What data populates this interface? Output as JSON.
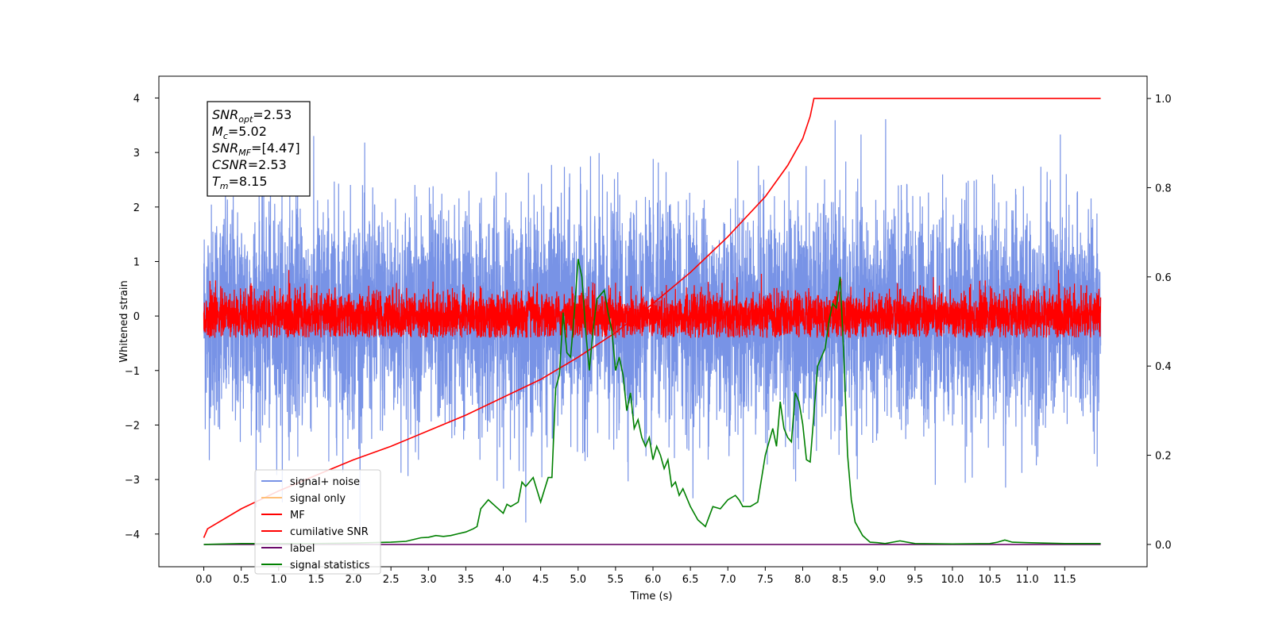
{
  "chart_data": {
    "type": "line",
    "xlabel": "Time (s)",
    "ylabel": "Whitened strain",
    "xlim": [
      -0.6,
      12.6
    ],
    "ylim": [
      -4.6,
      4.4
    ],
    "y2lim": [
      -0.05,
      1.05
    ],
    "x_ticks": [
      0.0,
      0.5,
      1.0,
      1.5,
      2.0,
      2.5,
      3.0,
      3.5,
      4.0,
      4.5,
      5.0,
      5.5,
      6.0,
      6.5,
      7.0,
      7.5,
      8.0,
      8.5,
      9.0,
      9.5,
      10.0,
      10.5,
      11.0,
      11.5
    ],
    "x_tick_labels": [
      "0.0",
      "0.5",
      "1.0",
      "1.5",
      "2.0",
      "2.5",
      "3.0",
      "3.5",
      "4.0",
      "4.5",
      "5.0",
      "5.5",
      "6.0",
      "6.5",
      "7.0",
      "7.5",
      "8.0",
      "8.5",
      "9.0",
      "9.5",
      "10.0",
      "10.5",
      "11.0",
      "11.5"
    ],
    "y_ticks": [
      -4,
      -3,
      -2,
      -1,
      0,
      1,
      2,
      3,
      4
    ],
    "y_tick_labels": [
      "−4",
      "−3",
      "−2",
      "−1",
      "0",
      "1",
      "2",
      "3",
      "4"
    ],
    "y2_ticks": [
      0.0,
      0.2,
      0.4,
      0.6,
      0.8,
      1.0
    ],
    "y2_tick_labels": [
      "0.0",
      "0.2",
      "0.4",
      "0.6",
      "0.8",
      "1.0"
    ],
    "grid": false,
    "legend_position": "lower-left",
    "annotation": {
      "lines": [
        {
          "sym": "SNR",
          "sub": "opt",
          "val": "=2.53"
        },
        {
          "sym": "M",
          "sub": "c",
          "val": "=5.02"
        },
        {
          "sym": "SNR",
          "sub": "MF",
          "val": "=[4.47]"
        },
        {
          "sym": "CSNR",
          "sub": "",
          "val": "=2.53"
        },
        {
          "sym": "T",
          "sub": "m",
          "val": "=8.15"
        }
      ]
    },
    "series": [
      {
        "name": "signal+ noise",
        "color": "#7893e6",
        "axis": "left",
        "kind": "noise",
        "x_range": [
          0,
          11.98
        ],
        "typical_amplitude": 1.4,
        "peak_max": 4.0,
        "peak_min": -4.15
      },
      {
        "name": "signal only",
        "color": "#ffc07a",
        "axis": "left",
        "kind": "hidden"
      },
      {
        "name": "MF",
        "color": "#ff0000",
        "axis": "left",
        "kind": "noise",
        "x_range": [
          0,
          11.98
        ],
        "typical_amplitude": 0.3,
        "peak_max": 0.9,
        "peak_min": -0.4
      },
      {
        "name": "cumilative SNR",
        "color": "#ff0000",
        "axis": "right",
        "kind": "line",
        "x": [
          0,
          0.05,
          0.5,
          1.0,
          1.5,
          2.0,
          2.5,
          3.0,
          3.5,
          4.0,
          4.5,
          5.0,
          5.5,
          6.0,
          6.5,
          7.0,
          7.5,
          7.8,
          8.0,
          8.1,
          8.15,
          8.2,
          9.0,
          10.0,
          11.0,
          11.98
        ],
        "y": [
          0.015,
          0.035,
          0.08,
          0.12,
          0.155,
          0.19,
          0.22,
          0.255,
          0.29,
          0.33,
          0.37,
          0.42,
          0.475,
          0.54,
          0.61,
          0.69,
          0.78,
          0.85,
          0.91,
          0.96,
          1.0,
          1.0,
          1.0,
          1.0,
          1.0,
          1.0
        ]
      },
      {
        "name": "label",
        "color": "#6a0a6a",
        "axis": "right",
        "kind": "line",
        "x": [
          0,
          11.98
        ],
        "y": [
          0.0,
          0.0
        ]
      },
      {
        "name": "signal statistics",
        "color": "#008000",
        "axis": "right",
        "kind": "line",
        "x": [
          0,
          0.5,
          1.0,
          1.5,
          2.0,
          2.5,
          2.7,
          2.9,
          3.0,
          3.1,
          3.2,
          3.3,
          3.4,
          3.5,
          3.6,
          3.65,
          3.7,
          3.8,
          3.9,
          4.0,
          4.05,
          4.1,
          4.2,
          4.25,
          4.3,
          4.4,
          4.5,
          4.6,
          4.65,
          4.7,
          4.75,
          4.8,
          4.85,
          4.9,
          4.95,
          5.0,
          5.05,
          5.1,
          5.15,
          5.2,
          5.25,
          5.3,
          5.35,
          5.4,
          5.45,
          5.5,
          5.55,
          5.6,
          5.65,
          5.7,
          5.75,
          5.8,
          5.85,
          5.9,
          5.95,
          6.0,
          6.05,
          6.1,
          6.15,
          6.2,
          6.25,
          6.3,
          6.35,
          6.4,
          6.5,
          6.6,
          6.7,
          6.8,
          6.9,
          7.0,
          7.1,
          7.15,
          7.2,
          7.3,
          7.4,
          7.5,
          7.6,
          7.65,
          7.7,
          7.75,
          7.8,
          7.85,
          7.9,
          7.95,
          8.0,
          8.05,
          8.1,
          8.2,
          8.3,
          8.35,
          8.4,
          8.45,
          8.5,
          8.55,
          8.6,
          8.65,
          8.7,
          8.8,
          8.9,
          9.0,
          9.1,
          9.3,
          9.5,
          10.0,
          10.5,
          10.6,
          10.7,
          10.8,
          11.0,
          11.5,
          11.98
        ],
        "y": [
          0.0,
          0.002,
          0.002,
          0.002,
          0.003,
          0.005,
          0.007,
          0.015,
          0.016,
          0.02,
          0.018,
          0.02,
          0.024,
          0.028,
          0.035,
          0.04,
          0.08,
          0.1,
          0.085,
          0.07,
          0.09,
          0.085,
          0.095,
          0.14,
          0.13,
          0.15,
          0.095,
          0.15,
          0.15,
          0.35,
          0.38,
          0.52,
          0.43,
          0.42,
          0.52,
          0.64,
          0.6,
          0.48,
          0.39,
          0.48,
          0.55,
          0.56,
          0.57,
          0.52,
          0.48,
          0.39,
          0.42,
          0.38,
          0.3,
          0.34,
          0.26,
          0.28,
          0.24,
          0.22,
          0.24,
          0.19,
          0.22,
          0.2,
          0.17,
          0.19,
          0.13,
          0.14,
          0.11,
          0.125,
          0.085,
          0.055,
          0.04,
          0.085,
          0.08,
          0.1,
          0.11,
          0.1,
          0.085,
          0.085,
          0.095,
          0.2,
          0.26,
          0.22,
          0.32,
          0.26,
          0.24,
          0.23,
          0.34,
          0.32,
          0.27,
          0.19,
          0.185,
          0.4,
          0.44,
          0.5,
          0.54,
          0.53,
          0.6,
          0.42,
          0.2,
          0.1,
          0.05,
          0.02,
          0.005,
          0.004,
          0.002,
          0.008,
          0.002,
          0.001,
          0.002,
          0.005,
          0.01,
          0.005,
          0.004,
          0.002,
          0.002
        ]
      }
    ]
  }
}
